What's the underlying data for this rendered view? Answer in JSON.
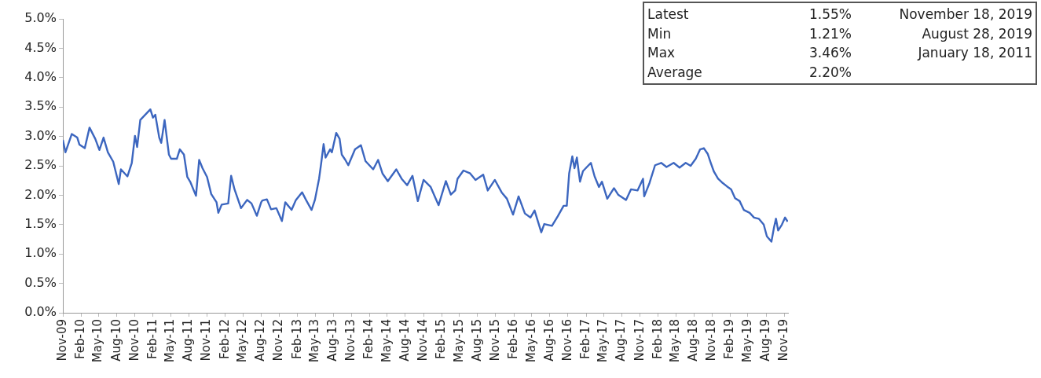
{
  "chart_data": {
    "type": "line",
    "annotations": [
      "Latest",
      "1.55%",
      "November 18, 2019",
      "Min",
      "1.21%",
      "August 28, 2019",
      "Max",
      "3.46%",
      "January 18, 2011",
      "Average",
      "2.20%"
    ],
    "series": [
      {
        "color": "#3c66bf",
        "x": [
          "2009-11-01",
          "2009-11-14",
          "2009-12-16",
          "2010-01-13",
          "2010-01-24",
          "2010-02-20",
          "2010-03-16",
          "2010-04-14",
          "2010-05-05",
          "2010-05-26",
          "2010-06-17",
          "2010-07-14",
          "2010-08-11",
          "2010-08-22",
          "2010-09-24",
          "2010-10-16",
          "2010-11-01",
          "2010-11-12",
          "2010-11-28",
          "2011-01-18",
          "2011-01-31",
          "2011-02-12",
          "2011-03-04",
          "2011-03-14",
          "2011-03-31",
          "2011-04-22",
          "2011-05-03",
          "2011-06-01",
          "2011-06-16",
          "2011-07-07",
          "2011-07-24",
          "2011-08-09",
          "2011-09-06",
          "2011-09-22",
          "2011-10-09",
          "2011-11-01",
          "2011-11-22",
          "2011-12-19",
          "2011-12-28",
          "2012-01-14",
          "2012-02-16",
          "2012-03-02",
          "2012-03-19",
          "2012-04-21",
          "2012-05-22",
          "2012-06-13",
          "2012-07-10",
          "2012-08-01",
          "2012-08-07",
          "2012-08-30",
          "2012-09-20",
          "2012-10-17",
          "2012-11-14",
          "2012-12-01",
          "2013-01-02",
          "2013-01-24",
          "2013-02-24",
          "2013-03-16",
          "2013-04-13",
          "2013-04-30",
          "2013-05-21",
          "2013-06-01",
          "2013-06-13",
          "2013-06-23",
          "2013-07-16",
          "2013-07-25",
          "2013-08-16",
          "2013-09-02",
          "2013-09-13",
          "2013-10-01",
          "2013-10-16",
          "2013-11-19",
          "2013-12-19",
          "2014-01-11",
          "2014-02-19",
          "2014-03-16",
          "2014-04-07",
          "2014-05-04",
          "2014-06-16",
          "2014-07-13",
          "2014-08-10",
          "2014-09-06",
          "2014-10-03",
          "2014-11-01",
          "2014-12-07",
          "2015-01-16",
          "2015-02-22",
          "2015-03-19",
          "2015-04-10",
          "2015-04-22",
          "2015-05-22",
          "2015-06-25",
          "2015-07-22",
          "2015-08-30",
          "2015-09-22",
          "2015-10-28",
          "2015-12-01",
          "2015-12-28",
          "2016-01-28",
          "2016-02-25",
          "2016-03-28",
          "2016-04-25",
          "2016-05-16",
          "2016-06-19",
          "2016-07-04",
          "2016-08-12",
          "2016-09-10",
          "2016-10-10",
          "2016-10-26",
          "2016-11-07",
          "2016-11-23",
          "2016-12-04",
          "2016-12-16",
          "2017-01-01",
          "2017-01-16",
          "2017-02-25",
          "2017-03-16",
          "2017-04-07",
          "2017-04-22",
          "2017-05-19",
          "2017-06-22",
          "2017-07-13",
          "2017-08-22",
          "2017-09-16",
          "2017-10-19",
          "2017-11-16",
          "2017-11-22",
          "2017-12-19",
          "2018-01-16",
          "2018-02-16",
          "2018-03-15",
          "2018-04-20",
          "2018-05-20",
          "2018-06-20",
          "2018-07-15",
          "2018-08-10",
          "2018-09-01",
          "2018-09-20",
          "2018-10-10",
          "2018-10-25",
          "2018-11-10",
          "2018-12-01",
          "2018-12-20",
          "2019-01-15",
          "2019-02-05",
          "2019-02-25",
          "2019-03-20",
          "2019-04-10",
          "2019-05-10",
          "2019-06-01",
          "2019-06-25",
          "2019-07-20",
          "2019-08-05",
          "2019-08-28",
          "2019-09-10",
          "2019-09-20",
          "2019-10-01",
          "2019-10-20",
          "2019-11-05",
          "2019-11-18"
        ],
        "values": [
          2.94,
          2.73,
          3.04,
          2.98,
          2.86,
          2.8,
          3.15,
          2.96,
          2.77,
          2.98,
          2.73,
          2.57,
          2.19,
          2.44,
          2.32,
          2.55,
          3.01,
          2.82,
          3.28,
          3.46,
          3.32,
          3.37,
          2.98,
          2.89,
          3.28,
          2.69,
          2.62,
          2.62,
          2.78,
          2.69,
          2.31,
          2.22,
          1.99,
          2.6,
          2.46,
          2.31,
          2.02,
          1.88,
          1.7,
          1.84,
          1.86,
          2.33,
          2.1,
          1.78,
          1.92,
          1.86,
          1.65,
          1.88,
          1.91,
          1.93,
          1.76,
          1.78,
          1.56,
          1.88,
          1.75,
          1.92,
          2.05,
          1.92,
          1.75,
          1.92,
          2.28,
          2.55,
          2.87,
          2.64,
          2.78,
          2.73,
          3.06,
          2.96,
          2.69,
          2.6,
          2.51,
          2.78,
          2.85,
          2.58,
          2.44,
          2.6,
          2.37,
          2.24,
          2.44,
          2.28,
          2.17,
          2.33,
          1.9,
          2.26,
          2.14,
          1.83,
          2.24,
          2.01,
          2.08,
          2.28,
          2.42,
          2.37,
          2.26,
          2.35,
          2.08,
          2.26,
          2.05,
          1.94,
          1.67,
          1.98,
          1.69,
          1.62,
          1.74,
          1.37,
          1.51,
          1.48,
          1.64,
          1.82,
          1.82,
          2.37,
          2.66,
          2.46,
          2.64,
          2.23,
          2.41,
          2.55,
          2.32,
          2.14,
          2.23,
          1.94,
          2.12,
          2.01,
          1.92,
          2.1,
          2.08,
          2.28,
          1.98,
          2.21,
          2.51,
          2.55,
          2.48,
          2.55,
          2.47,
          2.55,
          2.5,
          2.62,
          2.78,
          2.8,
          2.7,
          2.55,
          2.4,
          2.28,
          2.22,
          2.15,
          2.1,
          1.95,
          1.9,
          1.75,
          1.7,
          1.62,
          1.6,
          1.5,
          1.3,
          1.21,
          1.45,
          1.6,
          1.4,
          1.5,
          1.62,
          1.55
        ]
      }
    ],
    "xlim": [
      "2009-11-01",
      "2019-11-20"
    ],
    "xticks": [
      {
        "value": "2009-11-01",
        "label": "Nov-09"
      },
      {
        "value": "2010-02-01",
        "label": "Feb-10"
      },
      {
        "value": "2010-05-01",
        "label": "May-10"
      },
      {
        "value": "2010-08-01",
        "label": "Aug-10"
      },
      {
        "value": "2010-11-01",
        "label": "Nov-10"
      },
      {
        "value": "2011-02-01",
        "label": "Feb-11"
      },
      {
        "value": "2011-05-01",
        "label": "May-11"
      },
      {
        "value": "2011-08-01",
        "label": "Aug-11"
      },
      {
        "value": "2011-11-01",
        "label": "Nov-11"
      },
      {
        "value": "2012-02-01",
        "label": "Feb-12"
      },
      {
        "value": "2012-05-01",
        "label": "May-12"
      },
      {
        "value": "2012-08-01",
        "label": "Aug-12"
      },
      {
        "value": "2012-11-01",
        "label": "Nov-12"
      },
      {
        "value": "2013-02-01",
        "label": "Feb-13"
      },
      {
        "value": "2013-05-01",
        "label": "May-13"
      },
      {
        "value": "2013-08-01",
        "label": "Aug-13"
      },
      {
        "value": "2013-11-01",
        "label": "Nov-13"
      },
      {
        "value": "2014-02-01",
        "label": "Feb-14"
      },
      {
        "value": "2014-05-01",
        "label": "May-14"
      },
      {
        "value": "2014-08-01",
        "label": "Aug-14"
      },
      {
        "value": "2014-11-01",
        "label": "Nov-14"
      },
      {
        "value": "2015-02-01",
        "label": "Feb-15"
      },
      {
        "value": "2015-05-01",
        "label": "May-15"
      },
      {
        "value": "2015-08-01",
        "label": "Aug-15"
      },
      {
        "value": "2015-11-01",
        "label": "Nov-15"
      },
      {
        "value": "2016-02-01",
        "label": "Feb-16"
      },
      {
        "value": "2016-05-01",
        "label": "May-16"
      },
      {
        "value": "2016-08-01",
        "label": "Aug-16"
      },
      {
        "value": "2016-11-01",
        "label": "Nov-16"
      },
      {
        "value": "2017-02-01",
        "label": "Feb-17"
      },
      {
        "value": "2017-05-01",
        "label": "May-17"
      },
      {
        "value": "2017-08-01",
        "label": "Aug-17"
      },
      {
        "value": "2017-11-01",
        "label": "Nov-17"
      },
      {
        "value": "2018-02-01",
        "label": "Feb-18"
      },
      {
        "value": "2018-05-01",
        "label": "May-18"
      },
      {
        "value": "2018-08-01",
        "label": "Aug-18"
      },
      {
        "value": "2018-11-01",
        "label": "Nov-18"
      },
      {
        "value": "2019-02-01",
        "label": "Feb-19"
      },
      {
        "value": "2019-05-01",
        "label": "May-19"
      },
      {
        "value": "2019-08-01",
        "label": "Aug-19"
      },
      {
        "value": "2019-11-01",
        "label": "Nov-19"
      }
    ],
    "ylim": [
      0,
      5
    ],
    "yticks": [
      {
        "value": 0,
        "label": "0.0%"
      },
      {
        "value": 0.5,
        "label": "0.5%"
      },
      {
        "value": 1,
        "label": "1.0%"
      },
      {
        "value": 1.5,
        "label": "1.5%"
      },
      {
        "value": 2,
        "label": "2.0%"
      },
      {
        "value": 2.5,
        "label": "2.5%"
      },
      {
        "value": 3,
        "label": "3.0%"
      },
      {
        "value": 3.5,
        "label": "3.5%"
      },
      {
        "value": 4,
        "label": "4.0%"
      },
      {
        "value": 4.5,
        "label": "4.5%"
      },
      {
        "value": 5,
        "label": "5.0%"
      }
    ]
  }
}
